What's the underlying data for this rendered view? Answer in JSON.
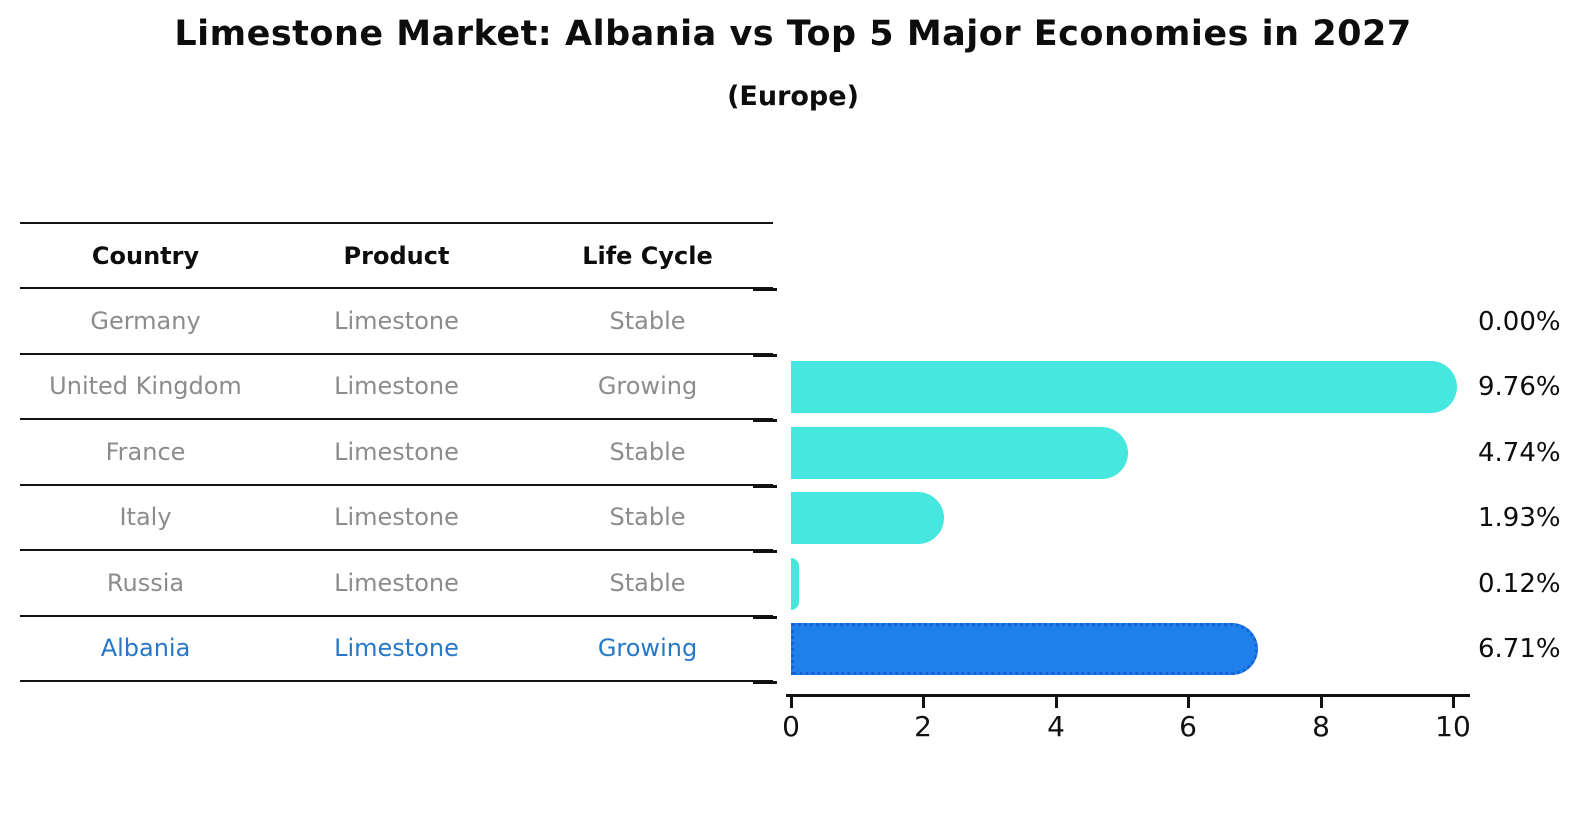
{
  "title": "Limestone Market: Albania vs Top 5 Major Economies in 2027",
  "subtitle": "(Europe)",
  "table": {
    "headers": [
      "Country",
      "Product",
      "Life Cycle"
    ],
    "rows": [
      {
        "country": "Germany",
        "product": "Limestone",
        "life_cycle": "Stable",
        "highlight": false
      },
      {
        "country": "United Kingdom",
        "product": "Limestone",
        "life_cycle": "Growing",
        "highlight": false
      },
      {
        "country": "France",
        "product": "Limestone",
        "life_cycle": "Stable",
        "highlight": false
      },
      {
        "country": "Italy",
        "product": "Limestone",
        "life_cycle": "Stable",
        "highlight": false
      },
      {
        "country": "Russia",
        "product": "Limestone",
        "life_cycle": "Stable",
        "highlight": false
      },
      {
        "country": "Albania",
        "product": "Limestone",
        "life_cycle": "Growing",
        "highlight": true
      }
    ]
  },
  "chart_data": {
    "type": "bar",
    "orientation": "horizontal",
    "title": "Limestone Market: Albania vs Top 5 Major Economies in 2027",
    "subtitle": "(Europe)",
    "categories": [
      "Germany",
      "United Kingdom",
      "France",
      "Italy",
      "Russia",
      "Albania"
    ],
    "values": [
      0.0,
      9.76,
      4.74,
      1.93,
      0.12,
      6.71
    ],
    "bar_labels": [
      "0.00%",
      "9.76%",
      "4.74%",
      "1.93%",
      "0.12%",
      "6.71%"
    ],
    "highlight_index": 5,
    "xlim": [
      0,
      10
    ],
    "xticks": [
      0,
      2,
      4,
      6,
      8,
      10
    ],
    "xtick_labels": [
      "0",
      "2",
      "4",
      "6",
      "8",
      "10"
    ],
    "grid": false,
    "legend_position": "none",
    "bar_color": "#45E7DF",
    "highlight_bar_color": "#1F80EC",
    "highlight_edge_color": "#1563D2"
  }
}
